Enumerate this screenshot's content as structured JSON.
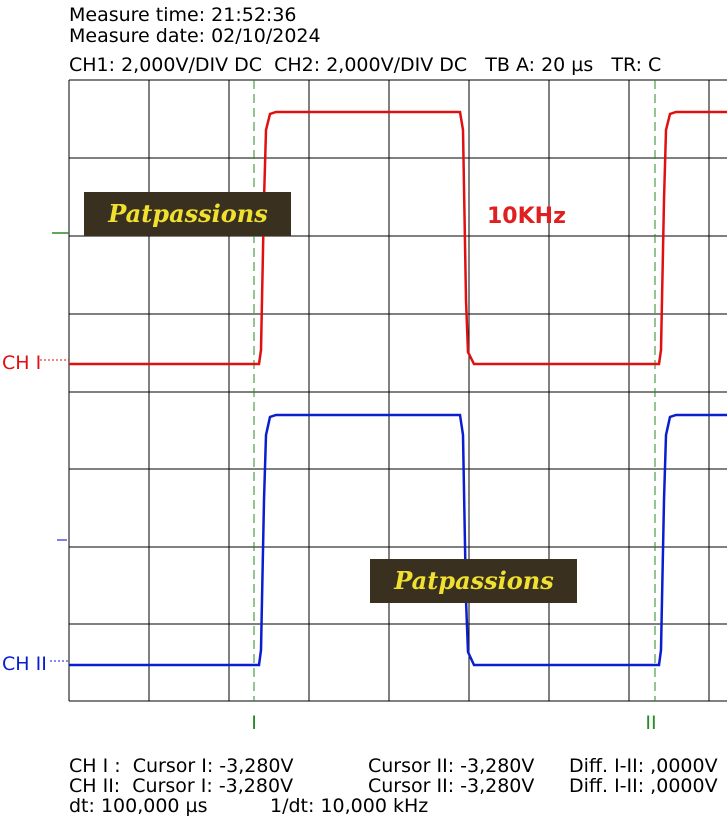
{
  "header": {
    "lines": [
      "Measure time: 21:52:36",
      "Measure date: 02/10/2024",
      "CH1: 2,000V/DIV DC  CH2: 2,000V/DIV DC   TB A: 20 µs   TR: C"
    ]
  },
  "channels": {
    "ch1": "CH I",
    "ch2": "CH II"
  },
  "annotations": {
    "watermark_top": "Patpassions",
    "watermark_bottom": "Patpassions",
    "frequency": "10KHz"
  },
  "cursors": {
    "first": "I",
    "second": "II"
  },
  "readouts": {
    "rows": [
      [
        "CH I :  Cursor I: -3,280V",
        "Cursor II: -3,280V",
        "Diff. I-II: ,0000V"
      ],
      [
        "CH II:  Cursor I: -3,280V",
        "Cursor II: -3,280V",
        "Diff. I-II: ,0000V"
      ],
      [
        "dt: 100,000 µs",
        "1/dt: 10,000 kHz"
      ]
    ]
  }
}
